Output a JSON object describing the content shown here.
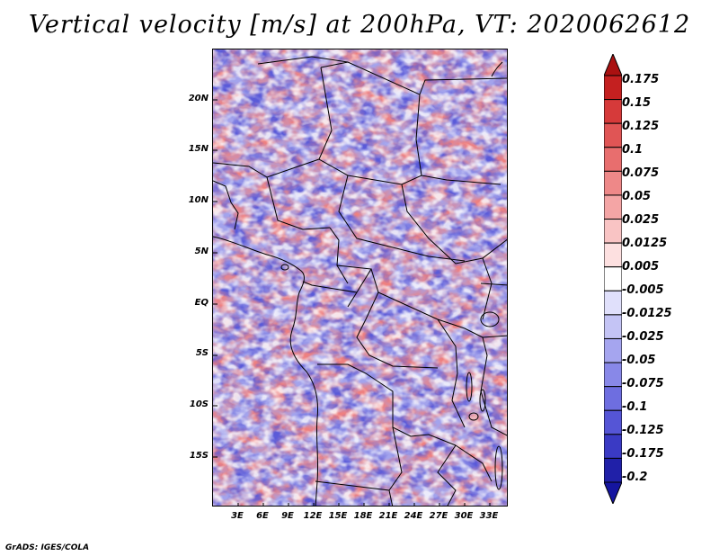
{
  "title": "Vertical velocity [m/s] at 200hPa, VT: 2020062612",
  "credit": "GrADS: IGES/COLA",
  "map": {
    "lat_labels": [
      "20N",
      "15N",
      "10N",
      "5N",
      "EQ",
      "5S",
      "10S",
      "15S"
    ],
    "lon_labels": [
      "3E",
      "6E",
      "9E",
      "12E",
      "15E",
      "18E",
      "21E",
      "24E",
      "27E",
      "30E",
      "33E"
    ]
  },
  "colorbar": {
    "levels": [
      "0.175",
      "0.15",
      "0.125",
      "0.1",
      "0.075",
      "0.05",
      "0.025",
      "0.0125",
      "0.005",
      "-0.005",
      "-0.0125",
      "-0.025",
      "-0.05",
      "-0.075",
      "-0.1",
      "-0.125",
      "-0.175",
      "-0.2"
    ],
    "colors": [
      "#aa1111",
      "#c42020",
      "#d63a3a",
      "#e05555",
      "#e86e6e",
      "#ee8888",
      "#f4a5a5",
      "#f9c4c4",
      "#fde0e0",
      "#ffffff",
      "#e0e0fb",
      "#c4c4f5",
      "#a5a5ef",
      "#8888e8",
      "#6e6ee0",
      "#5555d6",
      "#3a3ac4",
      "#2020a8",
      "#1515a0"
    ]
  }
}
